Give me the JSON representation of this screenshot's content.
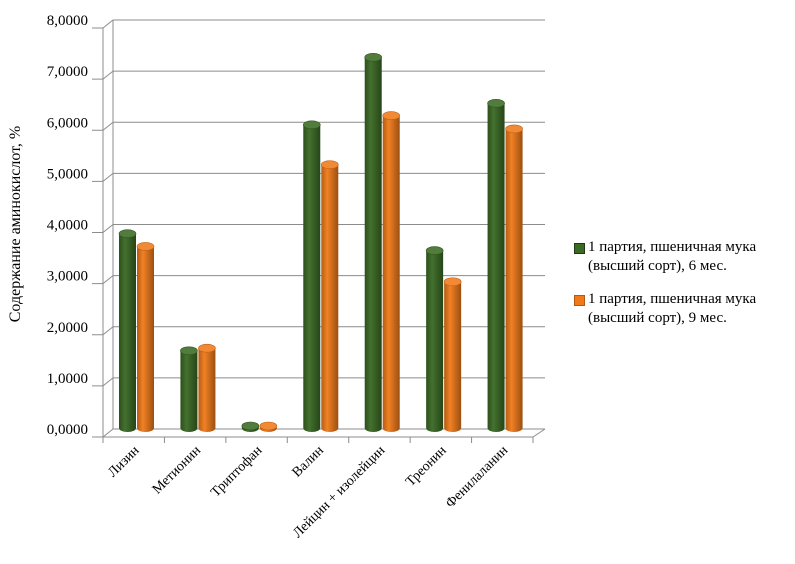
{
  "chart_data": {
    "type": "bar",
    "style": "3d",
    "title": "",
    "ylabel": "Содержание аминокислот, %",
    "xlabel": "",
    "ylim": [
      0,
      8
    ],
    "ytick_values": [
      0,
      1,
      2,
      3,
      4,
      5,
      6,
      7,
      8
    ],
    "ytick_labels": [
      "0,0000",
      "1,0000",
      "2,0000",
      "3,0000",
      "4,0000",
      "5,0000",
      "6,0000",
      "7,0000",
      "8,0000"
    ],
    "grid": true,
    "legend_position": "right",
    "categories": [
      "Лизин",
      "Метионин",
      "Триптофан",
      "Валин",
      "Лейцин + изолейцин",
      "Треонин",
      "Фенилаланин"
    ],
    "series": [
      {
        "name": "1 партия, пшеничная мука (высший сорт), 6 мес.",
        "color": "#3a6a24",
        "values": [
          3.82,
          1.53,
          0.04,
          5.95,
          7.27,
          3.49,
          6.37
        ]
      },
      {
        "name": "1 партия, пшеничная мука (высший сорт), 9 мес.",
        "color": "#f07a1a",
        "values": [
          3.57,
          1.58,
          0.02,
          5.17,
          6.13,
          2.88,
          5.87
        ]
      }
    ]
  }
}
